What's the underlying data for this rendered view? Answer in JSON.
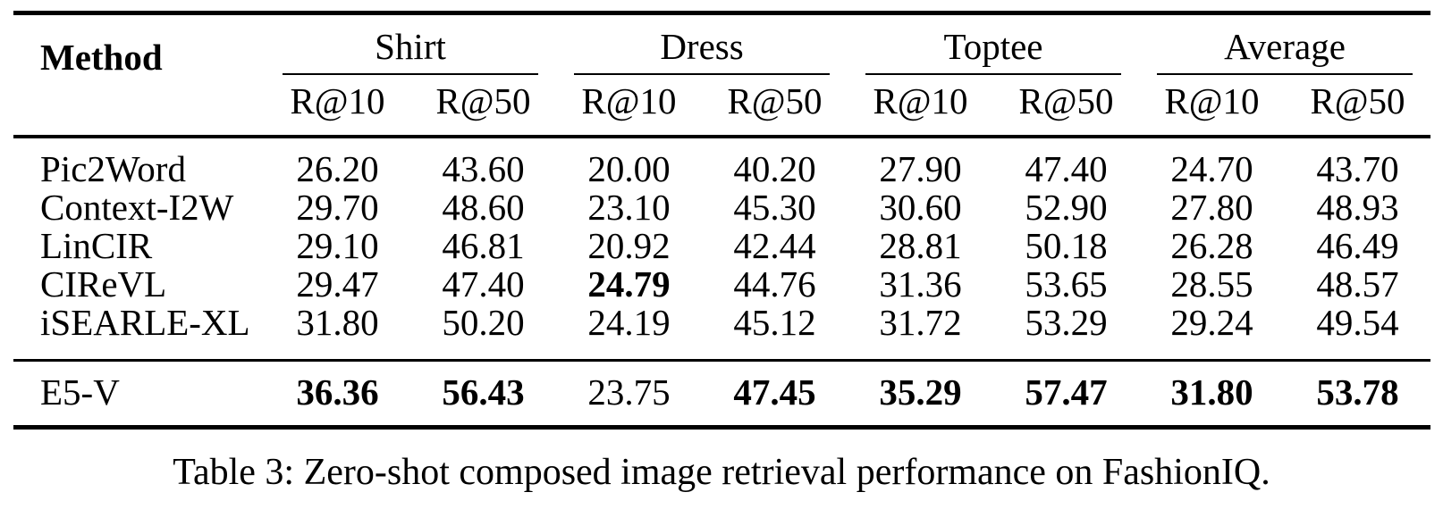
{
  "table": {
    "caption": "Table 3: Zero-shot composed image retrieval performance on FashionIQ.",
    "header": {
      "method": "Method",
      "groups": [
        {
          "label": "Shirt"
        },
        {
          "label": "Dress"
        },
        {
          "label": "Toptee"
        },
        {
          "label": "Average"
        }
      ],
      "metrics": [
        "R@10",
        "R@50",
        "R@10",
        "R@50",
        "R@10",
        "R@50",
        "R@10",
        "R@50"
      ]
    },
    "rows": [
      {
        "method": "Pic2Word",
        "values": [
          "26.20",
          "43.60",
          "20.00",
          "40.20",
          "27.90",
          "47.40",
          "24.70",
          "43.70"
        ]
      },
      {
        "method": "Context-I2W",
        "values": [
          "29.70",
          "48.60",
          "23.10",
          "45.30",
          "30.60",
          "52.90",
          "27.80",
          "48.93"
        ]
      },
      {
        "method": "LinCIR",
        "values": [
          "29.10",
          "46.81",
          "20.92",
          "42.44",
          "28.81",
          "50.18",
          "26.28",
          "46.49"
        ]
      },
      {
        "method": "CIReVL",
        "values": [
          "29.47",
          "47.40",
          "24.79",
          "44.76",
          "31.36",
          "53.65",
          "28.55",
          "48.57"
        ],
        "bold": [
          false,
          false,
          true,
          false,
          false,
          false,
          false,
          false
        ]
      },
      {
        "method": "iSEARLE-XL",
        "values": [
          "31.80",
          "50.20",
          "24.19",
          "45.12",
          "31.72",
          "53.29",
          "29.24",
          "49.54"
        ]
      }
    ],
    "highlight_row": {
      "method": "E5-V",
      "values": [
        "36.36",
        "56.43",
        "23.75",
        "47.45",
        "35.29",
        "57.47",
        "31.80",
        "53.78"
      ],
      "bold": [
        true,
        true,
        false,
        true,
        true,
        true,
        true,
        true
      ]
    }
  },
  "chart_data": {
    "type": "table",
    "title": "Table 3: Zero-shot composed image retrieval performance on FashionIQ.",
    "column_groups": [
      "Shirt",
      "Dress",
      "Toptee",
      "Average"
    ],
    "columns": [
      "Method",
      "Shirt R@10",
      "Shirt R@50",
      "Dress R@10",
      "Dress R@50",
      "Toptee R@10",
      "Toptee R@50",
      "Average R@10",
      "Average R@50"
    ],
    "rows": [
      [
        "Pic2Word",
        26.2,
        43.6,
        20.0,
        40.2,
        27.9,
        47.4,
        24.7,
        43.7
      ],
      [
        "Context-I2W",
        29.7,
        48.6,
        23.1,
        45.3,
        30.6,
        52.9,
        27.8,
        48.93
      ],
      [
        "LinCIR",
        29.1,
        46.81,
        20.92,
        42.44,
        28.81,
        50.18,
        26.28,
        46.49
      ],
      [
        "CIReVL",
        29.47,
        47.4,
        24.79,
        44.76,
        31.36,
        53.65,
        28.55,
        48.57
      ],
      [
        "iSEARLE-XL",
        31.8,
        50.2,
        24.19,
        45.12,
        31.72,
        53.29,
        29.24,
        49.54
      ],
      [
        "E5-V",
        36.36,
        56.43,
        23.75,
        47.45,
        35.29,
        57.47,
        31.8,
        53.78
      ]
    ]
  },
  "colors": {
    "text": "#000000",
    "background": "#ffffff",
    "rule": "#000000"
  }
}
